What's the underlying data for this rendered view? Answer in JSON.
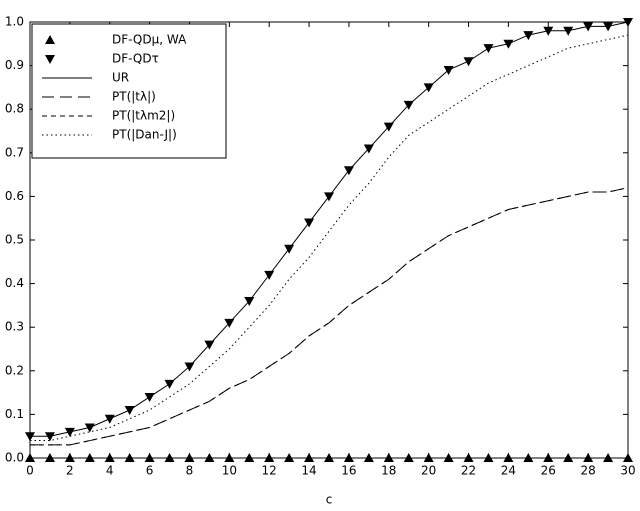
{
  "chart_data": {
    "type": "line",
    "xlabel": "c",
    "x": [
      0,
      1,
      2,
      3,
      4,
      5,
      6,
      7,
      8,
      9,
      10,
      11,
      12,
      13,
      14,
      15,
      16,
      17,
      18,
      19,
      20,
      21,
      22,
      23,
      24,
      25,
      26,
      27,
      28,
      29,
      30
    ],
    "xlim": [
      0,
      30
    ],
    "xticks": [
      0,
      2,
      4,
      6,
      8,
      10,
      12,
      14,
      16,
      18,
      20,
      22,
      24,
      26,
      28,
      30
    ],
    "ylim": [
      0,
      1
    ],
    "yticks": [
      {
        "value": 0,
        "label": "0.0"
      },
      0.1,
      0.2,
      0.3,
      0.4,
      0.5,
      0.6,
      0.7,
      0.8,
      0.9,
      {
        "value": 1,
        "label": "1.0"
      }
    ],
    "legend": "upper left",
    "series": [
      {
        "name": "DF-QDμ, WA",
        "color": "#000000",
        "marker": "triangle-up",
        "dash": "none",
        "values": [
          0,
          0,
          0,
          0,
          0,
          0,
          0,
          0,
          0,
          0,
          0,
          0,
          0,
          0,
          0,
          0,
          0,
          0,
          0,
          0,
          0,
          0,
          0,
          0,
          0,
          0,
          0,
          0,
          0,
          0,
          0
        ]
      },
      {
        "name": "DF-QDτ",
        "color": "#000000",
        "marker": "triangle-down",
        "dash": "none",
        "values": [
          0.05,
          0.05,
          0.06,
          0.07,
          0.09,
          0.11,
          0.14,
          0.17,
          0.21,
          0.26,
          0.31,
          0.36,
          0.42,
          0.48,
          0.54,
          0.6,
          0.66,
          0.71,
          0.76,
          0.81,
          0.85,
          0.89,
          0.91,
          0.94,
          0.95,
          0.97,
          0.98,
          0.98,
          0.99,
          0.99,
          1
        ]
      },
      {
        "name": "UR",
        "color": "#000000",
        "marker": "none",
        "dash": "solid",
        "values": [
          0.05,
          0.05,
          0.06,
          0.07,
          0.09,
          0.11,
          0.14,
          0.17,
          0.21,
          0.26,
          0.31,
          0.36,
          0.42,
          0.48,
          0.54,
          0.6,
          0.66,
          0.71,
          0.76,
          0.81,
          0.85,
          0.89,
          0.91,
          0.94,
          0.95,
          0.97,
          0.98,
          0.98,
          0.99,
          0.99,
          1
        ]
      },
      {
        "name": "PT(|tλ|)",
        "color": "#000000",
        "marker": "none",
        "dash": "long",
        "values": [
          0.03,
          0.03,
          0.03,
          0.04,
          0.05,
          0.06,
          0.07,
          0.09,
          0.11,
          0.13,
          0.16,
          0.18,
          0.21,
          0.24,
          0.28,
          0.31,
          0.35,
          0.38,
          0.41,
          0.45,
          0.48,
          0.51,
          0.53,
          0.55,
          0.57,
          0.58,
          0.59,
          0.6,
          0.61,
          0.61,
          0.62
        ]
      },
      {
        "name": "PT(|tλm2|)",
        "color": "#000000",
        "marker": "none",
        "dash": "short",
        "values": [
          0.03,
          0.03,
          0.03,
          0.04,
          0.05,
          0.06,
          0.07,
          0.09,
          0.11,
          0.13,
          0.16,
          0.18,
          0.21,
          0.24,
          0.28,
          0.31,
          0.35,
          0.38,
          0.41,
          0.45,
          0.48,
          0.51,
          0.53,
          0.55,
          0.57,
          0.58,
          0.59,
          0.6,
          0.61,
          0.61,
          0.62
        ]
      },
      {
        "name": "PT(|Dan-J|)",
        "color": "#000000",
        "marker": "none",
        "dash": "dotted",
        "values": [
          0.04,
          0.04,
          0.05,
          0.06,
          0.07,
          0.09,
          0.11,
          0.14,
          0.17,
          0.21,
          0.25,
          0.3,
          0.35,
          0.41,
          0.46,
          0.52,
          0.58,
          0.63,
          0.69,
          0.74,
          0.77,
          0.8,
          0.83,
          0.86,
          0.88,
          0.9,
          0.92,
          0.94,
          0.95,
          0.96,
          0.97
        ]
      }
    ]
  }
}
